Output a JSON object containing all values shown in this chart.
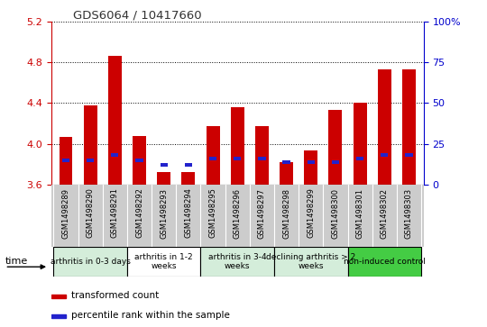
{
  "title": "GDS6064 / 10417660",
  "samples": [
    "GSM1498289",
    "GSM1498290",
    "GSM1498291",
    "GSM1498292",
    "GSM1498293",
    "GSM1498294",
    "GSM1498295",
    "GSM1498296",
    "GSM1498297",
    "GSM1498298",
    "GSM1498299",
    "GSM1498300",
    "GSM1498301",
    "GSM1498302",
    "GSM1498303"
  ],
  "red_values": [
    4.07,
    4.38,
    4.86,
    4.08,
    3.72,
    3.72,
    4.17,
    4.36,
    4.17,
    3.82,
    3.94,
    4.33,
    4.4,
    4.73,
    4.73
  ],
  "blue_pct": [
    15,
    15,
    18,
    15,
    12,
    12,
    16,
    16,
    16,
    14,
    14,
    14,
    16,
    18,
    18
  ],
  "ymin": 3.6,
  "ymax": 5.2,
  "yticks": [
    3.6,
    4.0,
    4.4,
    4.8,
    5.2
  ],
  "right_yticks": [
    0,
    25,
    50,
    75,
    100
  ],
  "bar_color": "#cc0000",
  "blue_color": "#2222cc",
  "groups": [
    {
      "label": "arthritis in 0-3 days",
      "start": 0,
      "end": 3,
      "color": "#d4edda"
    },
    {
      "label": "arthritis in 1-2\nweeks",
      "start": 3,
      "end": 6,
      "color": "#ffffff"
    },
    {
      "label": "arthritis in 3-4\nweeks",
      "start": 6,
      "end": 9,
      "color": "#d4edda"
    },
    {
      "label": "declining arthritis > 2\nweeks",
      "start": 9,
      "end": 12,
      "color": "#d4edda"
    },
    {
      "label": "non-induced control",
      "start": 12,
      "end": 15,
      "color": "#44cc44"
    }
  ],
  "legend_red": "transformed count",
  "legend_blue": "percentile rank within the sample",
  "left_axis_color": "#cc0000",
  "right_axis_color": "#0000cc",
  "sample_bg_color": "#cccccc",
  "title_color": "#333333"
}
